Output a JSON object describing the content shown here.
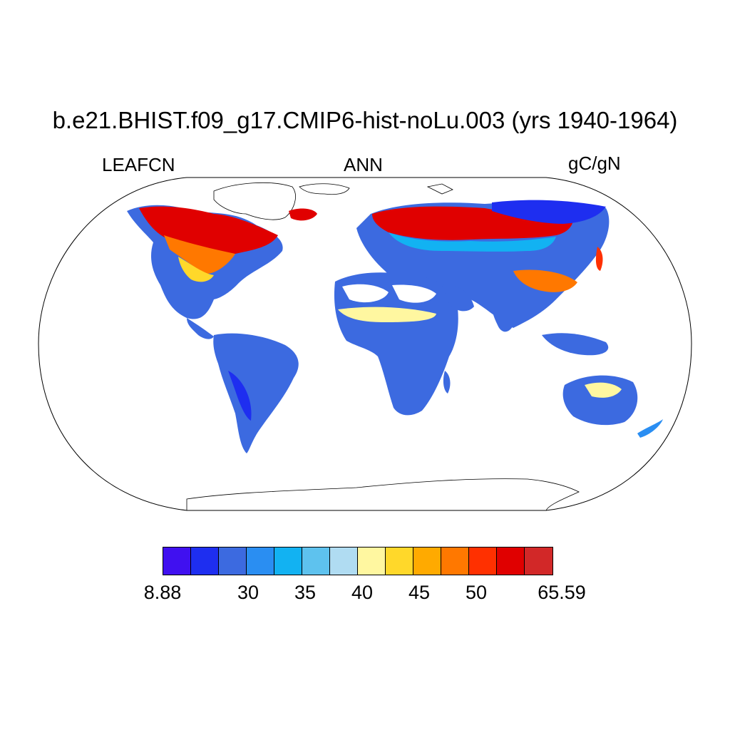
{
  "title": "b.e21.BHIST.f09_g17.CMIP6-hist-noLu.003 (yrs 1940-1964)",
  "left_label": "LEAFCN",
  "center_label": "ANN",
  "right_label": "gC/gN",
  "colorbar": {
    "colors": [
      "#4010f0",
      "#1e2ef0",
      "#3c6ae0",
      "#2a8ef2",
      "#12b2f2",
      "#5ec2ee",
      "#b0dcf2",
      "#fff7a0",
      "#ffd82a",
      "#ffaa00",
      "#ff7800",
      "#ff3000",
      "#e00000",
      "#d22828"
    ],
    "labels": [
      "8.88",
      "30",
      "35",
      "40",
      "45",
      "50",
      "65.59"
    ]
  },
  "chart_data": {
    "type": "heatmap",
    "title": "b.e21.BHIST.f09_g17.CMIP6-hist-noLu.003 (yrs 1940-1964)",
    "variable": "LEAFCN",
    "season": "ANN",
    "units": "gC/gN",
    "projection": "Robinson",
    "colorbar_range": [
      8.88,
      65.59
    ],
    "colorbar_ticks": [
      "8.88",
      "30",
      "35",
      "40",
      "45",
      "50",
      "65.59"
    ]
  }
}
